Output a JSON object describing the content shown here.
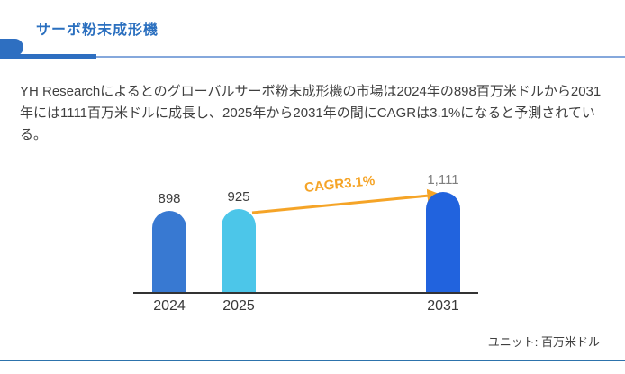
{
  "header": {
    "title": "サーボ粉末成形機",
    "accent_color": "#2e6fc1",
    "title_color": "#2a6fbf",
    "thin_rule_color": "#85a8dc"
  },
  "description": {
    "text": "YH Researchによるとのグローバルサーボ粉末成形機の市場は2024年の898百万米ドルから2031年には1111百万米ドルに成長し、2025年から2031年の間にCAGRは3.1%になると予測されている。"
  },
  "chart_data": {
    "type": "bar",
    "categories": [
      "2024",
      "2025",
      "2031"
    ],
    "values": [
      898,
      925,
      1111
    ],
    "value_labels": [
      "898",
      "925",
      "1,111"
    ],
    "value_label_colors": [
      "#3d3d3d",
      "#3d3d3d",
      "#7f7f7f"
    ],
    "bar_colors": [
      "#3879d2",
      "#4cc6e9",
      "#2163de"
    ],
    "annotation": {
      "label": "CAGR3.1%",
      "color": "#f5a427",
      "from_category": "2025",
      "to_category": "2031"
    },
    "unit_label": "ユニット: 百万米ドル",
    "title": "",
    "xlabel": "",
    "ylabel": "",
    "ylim": [
      0,
      1111
    ],
    "grid": false,
    "legend": false,
    "y_axis_visible": false
  },
  "footer": {
    "divider_color": "#2d73ac"
  }
}
